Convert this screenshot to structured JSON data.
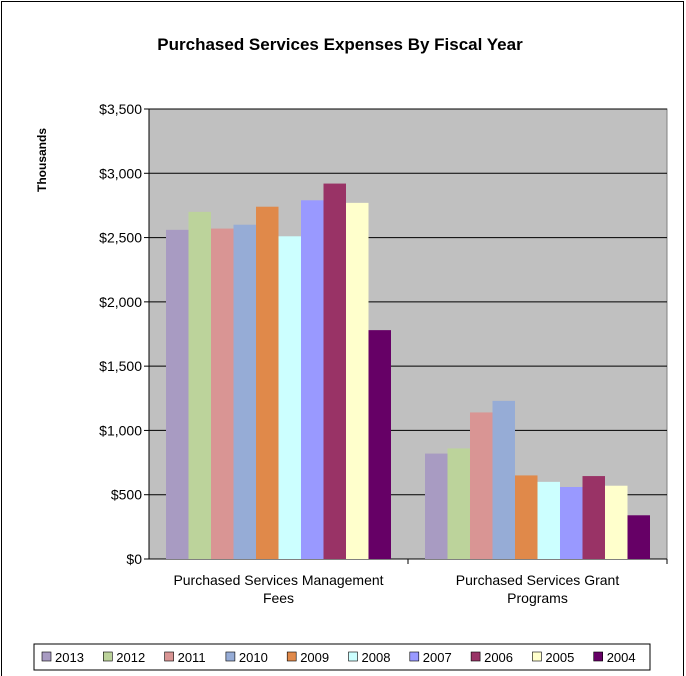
{
  "chart_data": {
    "type": "bar",
    "title": "Purchased Services Expenses By Fiscal Year",
    "xlabel": "",
    "ylabel": "Thousands",
    "ylim": [
      0,
      3500
    ],
    "yticks": [
      "$0",
      "$500",
      "$1,000",
      "$1,500",
      "$2,000",
      "$2,500",
      "$3,000",
      "$3,500"
    ],
    "ytick_values": [
      0,
      500,
      1000,
      1500,
      2000,
      2500,
      3000,
      3500
    ],
    "grid": true,
    "legend_position": "bottom",
    "categories": [
      [
        "Purchased Services Management",
        "Fees"
      ],
      [
        "Purchased Services Grant",
        "Programs"
      ]
    ],
    "series": [
      {
        "name": "2013",
        "color": "#a89bc2",
        "values": [
          2560,
          820
        ]
      },
      {
        "name": "2012",
        "color": "#bcd39b",
        "values": [
          2700,
          860
        ]
      },
      {
        "name": "2011",
        "color": "#d99594",
        "values": [
          2570,
          1140
        ]
      },
      {
        "name": "2010",
        "color": "#96acd6",
        "values": [
          2600,
          1230
        ]
      },
      {
        "name": "2009",
        "color": "#e0894a",
        "values": [
          2740,
          650
        ]
      },
      {
        "name": "2008",
        "color": "#ccffff",
        "values": [
          2510,
          600
        ]
      },
      {
        "name": "2007",
        "color": "#9999ff",
        "values": [
          2790,
          560
        ]
      },
      {
        "name": "2006",
        "color": "#993366",
        "values": [
          2920,
          645
        ]
      },
      {
        "name": "2005",
        "color": "#ffffcc",
        "values": [
          2770,
          570
        ]
      },
      {
        "name": "2004",
        "color": "#660066",
        "values": [
          1780,
          340
        ]
      }
    ],
    "plot_background": "#c0c0c0"
  }
}
